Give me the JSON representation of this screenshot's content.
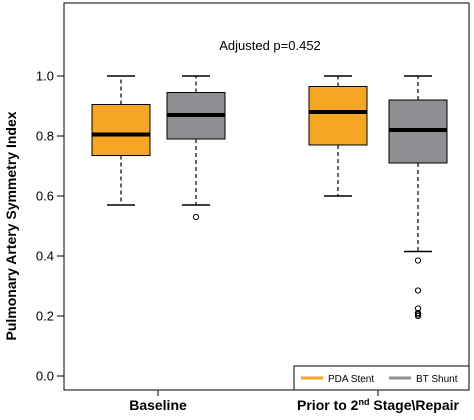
{
  "chart_data": {
    "type": "boxplot",
    "title": "",
    "annotation": "Adjusted p=0.452",
    "ylabel": "Pulmonary Artery Symmetry Index",
    "xlabel": "",
    "ylim": [
      0.0,
      1.0
    ],
    "yticks": [
      "0.0",
      "0.2",
      "0.4",
      "0.6",
      "0.8",
      "1.0"
    ],
    "categories": [
      {
        "id": "baseline",
        "label": "Baseline"
      },
      {
        "id": "prior",
        "label_prefix": "Prior to 2",
        "label_sup": "nd",
        "label_suffix": " Stage\\Repair"
      }
    ],
    "series": [
      {
        "name": "PDA Stent",
        "color": "#F5A623",
        "boxes": [
          {
            "min": 0.57,
            "q1": 0.735,
            "median": 0.805,
            "q3": 0.905,
            "max": 1.0,
            "outliers": []
          },
          {
            "min": 0.6,
            "q1": 0.77,
            "median": 0.88,
            "q3": 0.965,
            "max": 1.0,
            "outliers": []
          }
        ]
      },
      {
        "name": "BT Shunt",
        "color": "#8E8E93",
        "boxes": [
          {
            "min": 0.57,
            "q1": 0.79,
            "median": 0.87,
            "q3": 0.945,
            "max": 1.0,
            "outliers": [
              0.53
            ]
          },
          {
            "min": 0.415,
            "q1": 0.71,
            "median": 0.82,
            "q3": 0.92,
            "max": 1.0,
            "outliers": [
              0.385,
              0.285,
              0.225,
              0.21,
              0.205,
              0.2
            ]
          }
        ]
      }
    ],
    "legend_position": "bottom-right"
  }
}
